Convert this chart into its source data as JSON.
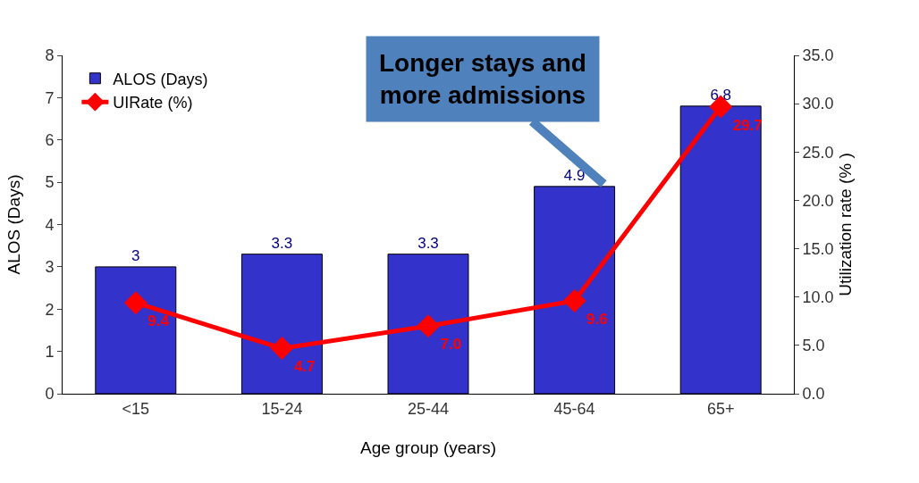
{
  "chart_data": {
    "type": "bar",
    "xlabel": "Age group (years)",
    "ylabel": "ALOS (Days)",
    "y2label": "Utilization rate (% )",
    "categories": [
      "<15",
      "15-24",
      "25-44",
      "45-64",
      "65+"
    ],
    "series": [
      {
        "name": "ALOS (Days)",
        "color": "#3333cc",
        "values": [
          3,
          3.3,
          3.3,
          4.9,
          6.8
        ],
        "value_labels": [
          "3",
          "3.3",
          "3.3",
          "4.9",
          "6.8"
        ]
      },
      {
        "name": "UIRate (%)",
        "type": "line",
        "axis": "y2",
        "color": "#ff0000",
        "marker": "diamond",
        "values": [
          9.4,
          4.7,
          7.0,
          9.6,
          29.7
        ],
        "value_labels": [
          "9.4",
          "4.7",
          "7.0",
          "9.6",
          "29.7"
        ]
      }
    ],
    "ylim": [
      0,
      8
    ],
    "yticks": [
      0,
      1,
      2,
      3,
      4,
      5,
      6,
      7,
      8
    ],
    "y2lim": [
      0,
      35
    ],
    "y2ticks": [
      {
        "value": 0,
        "label": "0.0"
      },
      {
        "value": 5,
        "label": "5.0"
      },
      {
        "value": 10,
        "label": "10.0"
      },
      {
        "value": 15,
        "label": "15.0"
      },
      {
        "value": 20,
        "label": "20.0"
      },
      {
        "value": 25,
        "label": "25.0"
      },
      {
        "value": 30,
        "label": "30.0"
      },
      {
        "value": 35,
        "label": "35.0"
      }
    ],
    "grid": false,
    "legend": "top left",
    "annotations": [
      "Longer stays and more admissions"
    ]
  }
}
